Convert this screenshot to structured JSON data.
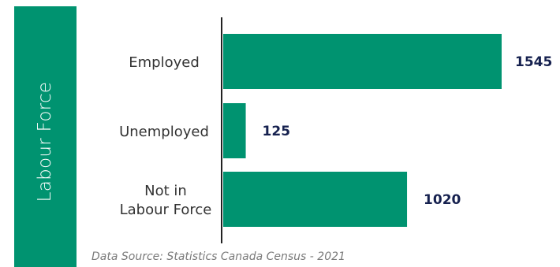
{
  "side_title": "Labour Force",
  "source": "Data Source: Statistics Canada Census - 2021",
  "colors": {
    "bar": "#009370",
    "band": "#009370",
    "value_text": "#16214f",
    "axis": "#222222"
  },
  "chart_data": {
    "type": "bar",
    "orientation": "horizontal",
    "categories": [
      "Employed",
      "Unemployed",
      "Not in Labour Force"
    ],
    "category_lines": [
      [
        "Employed"
      ],
      [
        "Unemployed"
      ],
      [
        "Not in",
        "Labour Force"
      ]
    ],
    "values": [
      1545,
      125,
      1020
    ],
    "xlim": [
      0,
      1545
    ],
    "grid": false,
    "legend": "none"
  }
}
